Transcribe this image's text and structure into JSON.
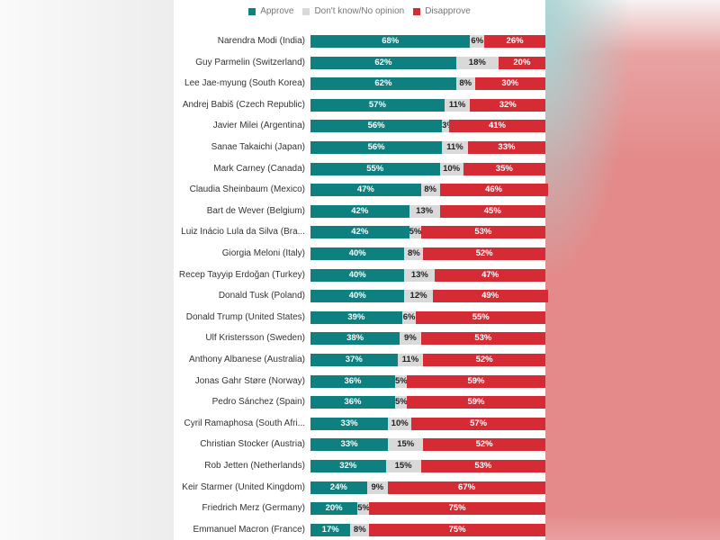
{
  "colors": {
    "approve": "#0e8080",
    "neutral": "#d9d9d9",
    "disapprove": "#d42b35"
  },
  "chart_data": {
    "type": "bar",
    "orientation": "horizontal",
    "stacked": true,
    "legend": {
      "position": "top",
      "entries": [
        "Approve",
        "Don't know/No opinion",
        "Disapprove"
      ]
    },
    "xlim": [
      0,
      100
    ],
    "categories": [
      "Narendra Modi (India)",
      "Guy Parmelin (Switzerland)",
      "Lee Jae-myung (South Korea)",
      "Andrej Babiš (Czech Republic)",
      "Javier Milei (Argentina)",
      "Sanae Takaichi (Japan)",
      "Mark Carney (Canada)",
      "Claudia Sheinbaum (Mexico)",
      "Bart de Wever (Belgium)",
      "Luiz Inácio Lula da Silva (Bra...",
      "Giorgia Meloni (Italy)",
      "Recep Tayyip Erdoğan (Turkey)",
      "Donald Tusk (Poland)",
      "Donald Trump (United States)",
      "Ulf Kristersson (Sweden)",
      "Anthony Albanese (Australia)",
      "Jonas Gahr Støre (Norway)",
      "Pedro Sánchez (Spain)",
      "Cyril Ramaphosa (South Afri...",
      "Christian Stocker (Austria)",
      "Rob Jetten (Netherlands)",
      "Keir Starmer (United Kingdom)",
      "Friedrich Merz (Germany)",
      "Emmanuel Macron (France)"
    ],
    "series": [
      {
        "name": "Approve",
        "values": [
          68,
          62,
          62,
          57,
          56,
          56,
          55,
          47,
          42,
          42,
          40,
          40,
          40,
          39,
          38,
          37,
          36,
          36,
          33,
          33,
          32,
          24,
          20,
          17
        ]
      },
      {
        "name": "Don't know/No opinion",
        "values": [
          6,
          18,
          8,
          11,
          3,
          11,
          10,
          8,
          13,
          5,
          8,
          13,
          12,
          6,
          9,
          11,
          5,
          5,
          10,
          15,
          15,
          9,
          5,
          8
        ]
      },
      {
        "name": "Disapprove",
        "values": [
          26,
          20,
          30,
          32,
          41,
          33,
          35,
          46,
          45,
          53,
          52,
          47,
          49,
          55,
          53,
          52,
          59,
          59,
          57,
          52,
          53,
          67,
          75,
          75
        ]
      }
    ],
    "value_suffix": "%"
  }
}
